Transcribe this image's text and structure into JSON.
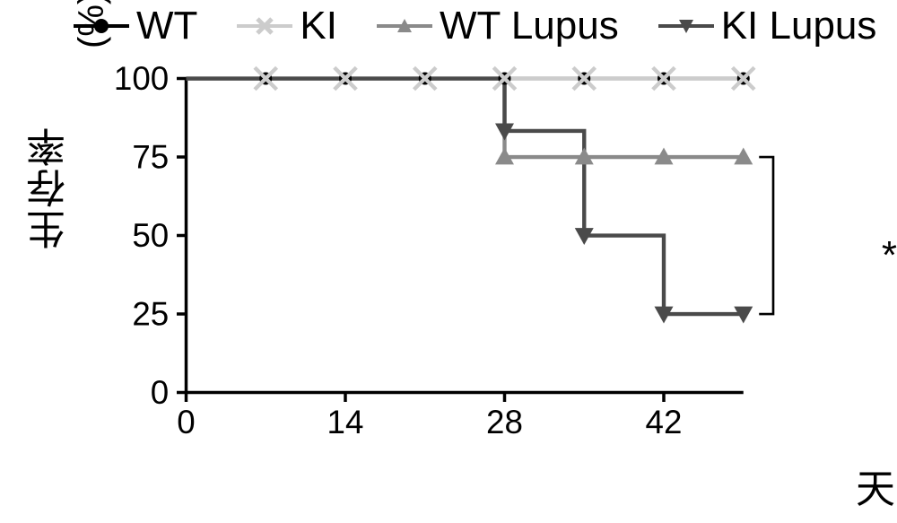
{
  "chart": {
    "type": "survival-step",
    "background_color": "#ffffff",
    "axis_color": "#000000",
    "axis_linewidth": 4,
    "tick_length": 12,
    "font_family": "Arial",
    "label_fontsize": 42,
    "title_fontsize": 44,
    "ylabel": "生存率",
    "ylabel_unit": "(%)",
    "xlabel": "天",
    "xlim": [
      0,
      49
    ],
    "ylim": [
      0,
      100
    ],
    "xticks": [
      0,
      14,
      28,
      42
    ],
    "xtick_labels": [
      "0",
      "14",
      "28",
      "42"
    ],
    "yticks": [
      0,
      25,
      50,
      75,
      100
    ],
    "ytick_labels": [
      "0",
      "25",
      "50",
      "75",
      "100"
    ],
    "marker_days": [
      7,
      14,
      21,
      28,
      35,
      42,
      49
    ],
    "significance_marker": "*",
    "bracket_color": "#000000",
    "bracket_linewidth": 3,
    "bracket_y1": 75,
    "bracket_y2": 25,
    "bracket_x": 51,
    "series": [
      {
        "name": "WT",
        "color": "#000000",
        "marker": "circle",
        "marker_size": 10,
        "linewidth": 4,
        "steps": [
          [
            0,
            100
          ],
          [
            49,
            100
          ]
        ],
        "marker_points": [
          [
            7,
            100
          ],
          [
            14,
            100
          ],
          [
            21,
            100
          ],
          [
            28,
            100
          ],
          [
            35,
            100
          ],
          [
            42,
            100
          ],
          [
            49,
            100
          ]
        ]
      },
      {
        "name": "KI",
        "color": "#cccccc",
        "marker": "x",
        "marker_size": 14,
        "linewidth": 4,
        "steps": [
          [
            0,
            100
          ],
          [
            49,
            100
          ]
        ],
        "marker_points": [
          [
            7,
            100
          ],
          [
            14,
            100
          ],
          [
            21,
            100
          ],
          [
            28,
            100
          ],
          [
            35,
            100
          ],
          [
            42,
            100
          ],
          [
            49,
            100
          ]
        ]
      },
      {
        "name": "WT Lupus",
        "color": "#8a8a8a",
        "marker": "triangle-up",
        "marker_size": 12,
        "linewidth": 5,
        "steps": [
          [
            0,
            100
          ],
          [
            28,
            100
          ],
          [
            28,
            75
          ],
          [
            49,
            75
          ]
        ],
        "marker_points": [
          [
            28,
            75
          ],
          [
            35,
            75
          ],
          [
            42,
            75
          ],
          [
            49,
            75
          ]
        ]
      },
      {
        "name": "KI Lupus",
        "color": "#4a4a4a",
        "marker": "triangle-down",
        "marker_size": 12,
        "linewidth": 5,
        "steps": [
          [
            0,
            100
          ],
          [
            28,
            100
          ],
          [
            28,
            83.3
          ],
          [
            35,
            83.3
          ],
          [
            35,
            50
          ],
          [
            42,
            50
          ],
          [
            42,
            25
          ],
          [
            49,
            25
          ]
        ],
        "marker_points": [
          [
            28,
            83.3
          ],
          [
            35,
            50
          ],
          [
            42,
            25
          ],
          [
            49,
            25
          ]
        ]
      }
    ],
    "legend": {
      "items": [
        {
          "label": "WT",
          "series": 0
        },
        {
          "label": "KI",
          "series": 1
        },
        {
          "label": "WT Lupus",
          "series": 2
        },
        {
          "label": "KI Lupus",
          "series": 3
        }
      ]
    }
  }
}
